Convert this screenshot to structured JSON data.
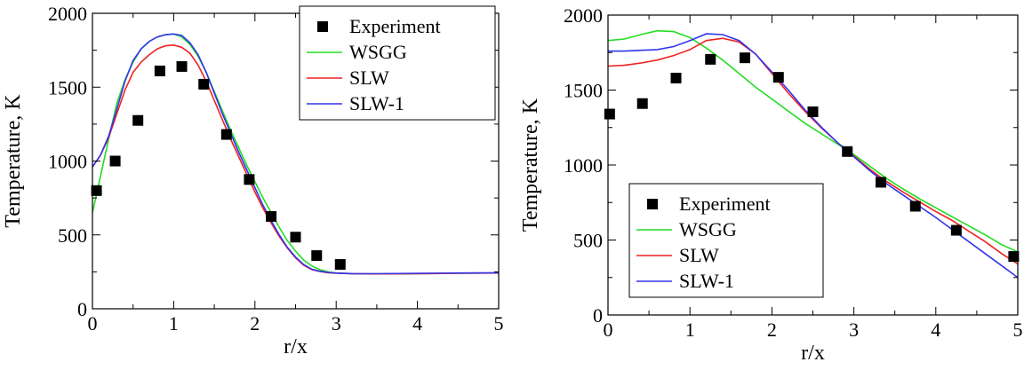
{
  "chart_data": [
    {
      "type": "line",
      "xlabel": "r/x",
      "ylabel": "Temperature, K",
      "xlim": [
        0,
        5
      ],
      "ylim": [
        0,
        2000
      ],
      "xticks": [
        "0",
        "1",
        "2",
        "3",
        "4",
        "5"
      ],
      "yticks": [
        "0",
        "500",
        "1000",
        "1500",
        "2000"
      ],
      "grid": false,
      "legend_position": "top-right",
      "scatter_series": {
        "name": "Experiment",
        "color": "#000000",
        "x": [
          0.05,
          0.28,
          0.56,
          0.83,
          1.1,
          1.37,
          1.65,
          1.93,
          2.2,
          2.5,
          2.76,
          3.05
        ],
        "y": [
          800,
          1000,
          1275,
          1610,
          1640,
          1520,
          1180,
          875,
          625,
          485,
          360,
          300
        ]
      },
      "series": [
        {
          "name": "WSGG",
          "color": "#22dd22",
          "x": [
            0.0,
            0.1,
            0.2,
            0.3,
            0.4,
            0.5,
            0.6,
            0.7,
            0.8,
            0.9,
            1.0,
            1.1,
            1.2,
            1.3,
            1.4,
            1.5,
            1.6,
            1.7,
            1.8,
            1.9,
            2.0,
            2.1,
            2.2,
            2.3,
            2.4,
            2.5,
            2.6,
            2.7,
            2.8,
            2.9,
            3.0,
            3.2,
            3.5,
            4.0,
            4.5,
            5.0
          ],
          "y": [
            650,
            900,
            1150,
            1390,
            1550,
            1670,
            1760,
            1810,
            1840,
            1855,
            1860,
            1840,
            1790,
            1710,
            1600,
            1470,
            1340,
            1210,
            1090,
            970,
            860,
            750,
            650,
            550,
            460,
            390,
            330,
            290,
            265,
            250,
            242,
            238,
            236,
            238,
            240,
            242
          ]
        },
        {
          "name": "SLW",
          "color": "#ee2222",
          "x": [
            0.0,
            0.1,
            0.2,
            0.3,
            0.4,
            0.5,
            0.6,
            0.7,
            0.8,
            0.9,
            1.0,
            1.1,
            1.2,
            1.3,
            1.4,
            1.5,
            1.6,
            1.7,
            1.8,
            1.9,
            2.0,
            2.1,
            2.2,
            2.3,
            2.4,
            2.5,
            2.6,
            2.7,
            2.8,
            2.9,
            3.0,
            3.2,
            3.5,
            4.0,
            4.5,
            5.0
          ],
          "y": [
            960,
            1040,
            1160,
            1320,
            1480,
            1600,
            1670,
            1720,
            1760,
            1780,
            1785,
            1770,
            1730,
            1650,
            1540,
            1410,
            1280,
            1150,
            1030,
            910,
            790,
            680,
            580,
            490,
            410,
            345,
            295,
            265,
            252,
            244,
            240,
            237,
            236,
            238,
            240,
            242
          ]
        },
        {
          "name": "SLW-1",
          "color": "#3333ee",
          "x": [
            0.0,
            0.1,
            0.2,
            0.3,
            0.4,
            0.5,
            0.6,
            0.7,
            0.8,
            0.9,
            1.0,
            1.1,
            1.2,
            1.3,
            1.4,
            1.5,
            1.6,
            1.7,
            1.8,
            1.9,
            2.0,
            2.1,
            2.2,
            2.3,
            2.4,
            2.5,
            2.6,
            2.7,
            2.8,
            2.9,
            3.0,
            3.2,
            3.5,
            4.0,
            4.5,
            5.0
          ],
          "y": [
            960,
            1040,
            1170,
            1350,
            1540,
            1680,
            1760,
            1810,
            1840,
            1855,
            1860,
            1850,
            1800,
            1720,
            1600,
            1460,
            1320,
            1190,
            1060,
            940,
            820,
            700,
            595,
            500,
            415,
            350,
            300,
            268,
            254,
            246,
            242,
            238,
            237,
            240,
            242,
            244
          ]
        }
      ]
    },
    {
      "type": "line",
      "xlabel": "r/x",
      "ylabel": "Temperature, K",
      "xlim": [
        0,
        5
      ],
      "ylim": [
        0,
        2000
      ],
      "xticks": [
        "0",
        "1",
        "2",
        "3",
        "4",
        "5"
      ],
      "yticks": [
        "0",
        "500",
        "1000",
        "1500",
        "2000"
      ],
      "grid": false,
      "legend_position": "bottom-left",
      "scatter_series": {
        "name": "Experiment",
        "color": "#000000",
        "x": [
          0.02,
          0.42,
          0.83,
          1.25,
          1.67,
          2.08,
          2.5,
          2.92,
          3.33,
          3.75,
          4.25,
          4.95
        ],
        "y": [
          1340,
          1410,
          1580,
          1705,
          1715,
          1585,
          1355,
          1090,
          885,
          725,
          565,
          390
        ]
      },
      "series": [
        {
          "name": "WSGG",
          "color": "#22dd22",
          "x": [
            0.0,
            0.2,
            0.4,
            0.6,
            0.8,
            1.0,
            1.2,
            1.4,
            1.6,
            1.8,
            2.0,
            2.2,
            2.4,
            2.6,
            2.8,
            3.0,
            3.2,
            3.4,
            3.6,
            3.8,
            4.0,
            4.2,
            4.4,
            4.6,
            4.8,
            5.0
          ],
          "y": [
            1830,
            1840,
            1870,
            1895,
            1890,
            1850,
            1780,
            1700,
            1610,
            1520,
            1440,
            1360,
            1280,
            1210,
            1140,
            1070,
            990,
            910,
            840,
            775,
            715,
            655,
            595,
            535,
            470,
            420
          ]
        },
        {
          "name": "SLW",
          "color": "#ee2222",
          "x": [
            0.0,
            0.2,
            0.4,
            0.6,
            0.8,
            1.0,
            1.2,
            1.4,
            1.6,
            1.8,
            2.0,
            2.2,
            2.4,
            2.6,
            2.8,
            3.0,
            3.2,
            3.4,
            3.6,
            3.8,
            4.0,
            4.2,
            4.4,
            4.6,
            4.8,
            5.0
          ],
          "y": [
            1660,
            1665,
            1680,
            1700,
            1730,
            1770,
            1830,
            1845,
            1820,
            1740,
            1610,
            1480,
            1360,
            1250,
            1150,
            1060,
            970,
            890,
            820,
            755,
            690,
            630,
            560,
            490,
            410,
            340
          ]
        },
        {
          "name": "SLW-1",
          "color": "#3333ee",
          "x": [
            0.0,
            0.2,
            0.4,
            0.6,
            0.8,
            1.0,
            1.2,
            1.4,
            1.6,
            1.8,
            2.0,
            2.2,
            2.4,
            2.6,
            2.8,
            3.0,
            3.2,
            3.4,
            3.6,
            3.8,
            4.0,
            4.2,
            4.4,
            4.6,
            4.8,
            5.0
          ],
          "y": [
            1760,
            1760,
            1765,
            1770,
            1790,
            1830,
            1875,
            1870,
            1830,
            1740,
            1620,
            1500,
            1370,
            1255,
            1150,
            1055,
            960,
            875,
            800,
            725,
            650,
            570,
            490,
            410,
            330,
            250
          ]
        }
      ]
    }
  ]
}
